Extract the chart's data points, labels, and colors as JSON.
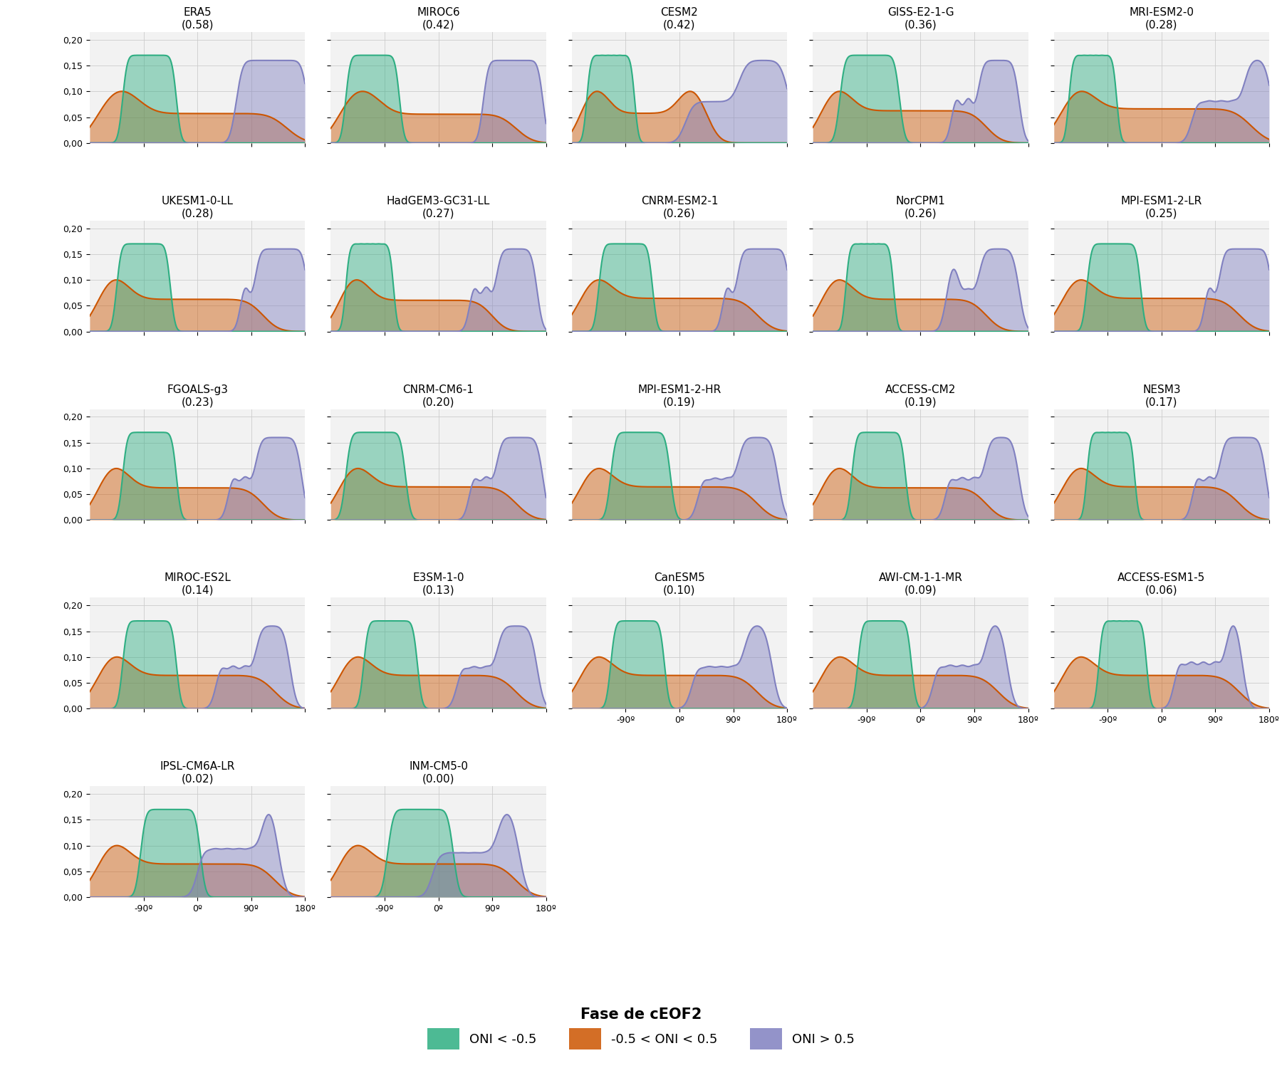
{
  "panels": [
    {
      "name": "ERA5",
      "score": 0.58,
      "la_nina": [
        -120,
        -110,
        -100,
        -90,
        -80,
        -70,
        -60,
        -50,
        -40
      ],
      "neutral": [
        -160,
        -150,
        -140,
        -130,
        -120,
        -110,
        -100,
        -80,
        -60,
        -40,
        -20,
        0,
        20,
        40,
        60,
        80,
        100,
        120,
        140
      ],
      "el_nino": [
        70,
        80,
        90,
        100,
        110,
        120,
        130,
        140,
        150,
        160,
        170,
        180
      ]
    },
    {
      "name": "MIROC6",
      "score": 0.42,
      "la_nina": [
        -150,
        -140,
        -130,
        -120,
        -110,
        -100,
        -90,
        -80,
        -70
      ],
      "neutral": [
        -160,
        -150,
        -140,
        -130,
        -120,
        -110,
        -100,
        -80,
        -60,
        -40,
        -20,
        0,
        20,
        40,
        60,
        80,
        100,
        120
      ],
      "el_nino": [
        80,
        90,
        100,
        110,
        120,
        130,
        140,
        150,
        160,
        170
      ]
    },
    {
      "name": "CESM2",
      "score": 0.42,
      "la_nina": [
        -150,
        -140,
        -130,
        -120,
        -110,
        -100,
        -90,
        -80
      ],
      "neutral": [
        -160,
        -150,
        -140,
        -130,
        -120,
        -100,
        -80,
        -60,
        -40,
        -20,
        0,
        10,
        20,
        30,
        40
      ],
      "el_nino": [
        20,
        40,
        60,
        80,
        100,
        110,
        120,
        130,
        140,
        150,
        160,
        170,
        180
      ]
    },
    {
      "name": "GISS-E2-1-G",
      "score": 0.36,
      "la_nina": [
        -130,
        -120,
        -110,
        -100,
        -90,
        -80,
        -70,
        -60,
        -50,
        -40
      ],
      "neutral": [
        -160,
        -150,
        -140,
        -130,
        -120,
        -100,
        -80,
        -60,
        -40,
        -20,
        0,
        20,
        40,
        60,
        80,
        100
      ],
      "el_nino": [
        60,
        80,
        100,
        110,
        120,
        130,
        140,
        150,
        160
      ]
    },
    {
      "name": "MRI-ESM2-0",
      "score": 0.28,
      "la_nina": [
        -150,
        -140,
        -130,
        -120,
        -110,
        -100,
        -90,
        -80
      ],
      "neutral": [
        -160,
        -150,
        -140,
        -130,
        -120,
        -100,
        -80,
        -60,
        -40,
        -20,
        0,
        20,
        40,
        60,
        80,
        100,
        120,
        140
      ],
      "el_nino": [
        60,
        80,
        100,
        120,
        140,
        150,
        160,
        170,
        180
      ]
    },
    {
      "name": "UKESM1-0-LL",
      "score": 0.28,
      "la_nina": [
        -130,
        -120,
        -110,
        -100,
        -90,
        -80,
        -70,
        -60,
        -50
      ],
      "neutral": [
        -160,
        -150,
        -140,
        -130,
        -120,
        -100,
        -80,
        -60,
        -40,
        -20,
        0,
        20,
        40,
        60,
        80,
        100
      ],
      "el_nino": [
        80,
        100,
        110,
        120,
        130,
        140,
        150,
        160,
        170,
        180
      ]
    },
    {
      "name": "HadGEM3-GC31-LL",
      "score": 0.27,
      "la_nina": [
        -150,
        -140,
        -130,
        -120,
        -110,
        -100,
        -90,
        -80
      ],
      "neutral": [
        -160,
        -150,
        -140,
        -130,
        -120,
        -100,
        -80,
        -60,
        -40,
        -20,
        0,
        20,
        40,
        60,
        80
      ],
      "el_nino": [
        60,
        80,
        100,
        110,
        120,
        130,
        140,
        150,
        160
      ]
    },
    {
      "name": "CNRM-ESM2-1",
      "score": 0.26,
      "la_nina": [
        -130,
        -120,
        -110,
        -100,
        -90,
        -80,
        -70,
        -60,
        -50
      ],
      "neutral": [
        -160,
        -150,
        -140,
        -130,
        -120,
        -100,
        -80,
        -60,
        -40,
        -20,
        0,
        20,
        40,
        60,
        80,
        100,
        120
      ],
      "el_nino": [
        80,
        100,
        110,
        120,
        130,
        140,
        150,
        160,
        170,
        180
      ]
    },
    {
      "name": "NorCPM1",
      "score": 0.26,
      "la_nina": [
        -120,
        -110,
        -100,
        -90,
        -80,
        -70,
        -60,
        -50
      ],
      "neutral": [
        -160,
        -150,
        -140,
        -130,
        -120,
        -100,
        -80,
        -60,
        -40,
        -20,
        0,
        20,
        40,
        60,
        80,
        100
      ],
      "el_nino": [
        50,
        60,
        80,
        100,
        110,
        120,
        130,
        140,
        150,
        160
      ]
    },
    {
      "name": "MPI-ESM1-2-LR",
      "score": 0.25,
      "la_nina": [
        -120,
        -110,
        -100,
        -90,
        -80,
        -70,
        -60,
        -50,
        -40
      ],
      "neutral": [
        -160,
        -150,
        -140,
        -130,
        -120,
        -100,
        -80,
        -60,
        -40,
        -20,
        0,
        20,
        40,
        60,
        80,
        100,
        120
      ],
      "el_nino": [
        80,
        100,
        110,
        120,
        130,
        140,
        150,
        160,
        170,
        180
      ]
    },
    {
      "name": "FGOALS-g3",
      "score": 0.23,
      "la_nina": [
        -120,
        -110,
        -100,
        -90,
        -80,
        -70,
        -60,
        -50,
        -40
      ],
      "neutral": [
        -160,
        -150,
        -140,
        -130,
        -120,
        -100,
        -80,
        -60,
        -40,
        -20,
        0,
        20,
        40,
        60,
        80,
        100
      ],
      "el_nino": [
        60,
        80,
        100,
        110,
        120,
        130,
        140,
        150,
        160,
        170
      ]
    },
    {
      "name": "CNRM-CM6-1",
      "score": 0.2,
      "la_nina": [
        -150,
        -140,
        -130,
        -120,
        -110,
        -100,
        -90,
        -80,
        -70,
        -60
      ],
      "neutral": [
        -160,
        -150,
        -140,
        -130,
        -120,
        -100,
        -80,
        -60,
        -40,
        -20,
        0,
        20,
        40,
        60,
        80,
        100,
        120
      ],
      "el_nino": [
        60,
        80,
        100,
        110,
        120,
        130,
        140,
        150,
        160,
        170
      ]
    },
    {
      "name": "MPI-ESM1-2-HR",
      "score": 0.19,
      "la_nina": [
        -110,
        -100,
        -90,
        -80,
        -70,
        -60,
        -50,
        -40,
        -30,
        -20
      ],
      "neutral": [
        -160,
        -150,
        -140,
        -130,
        -120,
        -100,
        -80,
        -60,
        -40,
        -20,
        0,
        20,
        40,
        60,
        80,
        100,
        120
      ],
      "el_nino": [
        40,
        60,
        80,
        100,
        110,
        120,
        130,
        140,
        150,
        160
      ]
    },
    {
      "name": "ACCESS-CM2",
      "score": 0.19,
      "la_nina": [
        -110,
        -100,
        -90,
        -80,
        -70,
        -60,
        -50,
        -40,
        -30
      ],
      "neutral": [
        -160,
        -150,
        -140,
        -130,
        -120,
        -100,
        -80,
        -60,
        -40,
        -20,
        0,
        20,
        40,
        60,
        80,
        100
      ],
      "el_nino": [
        50,
        70,
        90,
        110,
        120,
        130,
        140,
        150,
        160
      ]
    },
    {
      "name": "NESM3",
      "score": 0.17,
      "la_nina": [
        -120,
        -110,
        -100,
        -90,
        -80,
        -70,
        -60,
        -50
      ],
      "neutral": [
        -160,
        -150,
        -140,
        -130,
        -120,
        -100,
        -80,
        -60,
        -40,
        -20,
        0,
        20,
        40,
        60,
        80,
        100,
        120
      ],
      "el_nino": [
        60,
        80,
        100,
        110,
        120,
        130,
        140,
        150,
        160,
        170
      ]
    },
    {
      "name": "MIROC-ES2L",
      "score": 0.14,
      "la_nina": [
        -120,
        -110,
        -100,
        -90,
        -80,
        -70,
        -60,
        -50,
        -40
      ],
      "neutral": [
        -160,
        -150,
        -140,
        -130,
        -120,
        -100,
        -80,
        -60,
        -40,
        -20,
        0,
        20,
        40,
        60,
        80,
        100,
        120
      ],
      "el_nino": [
        40,
        60,
        80,
        100,
        110,
        120,
        130,
        140,
        150
      ]
    },
    {
      "name": "E3SM-1-0",
      "score": 0.13,
      "la_nina": [
        -120,
        -110,
        -100,
        -90,
        -80,
        -70,
        -60,
        -50,
        -40
      ],
      "neutral": [
        -160,
        -150,
        -140,
        -130,
        -120,
        -100,
        -80,
        -60,
        -40,
        -20,
        0,
        20,
        40,
        60,
        80,
        100,
        120
      ],
      "el_nino": [
        40,
        60,
        80,
        100,
        110,
        120,
        130,
        140,
        150,
        160
      ]
    },
    {
      "name": "CanESM5",
      "score": 0.1,
      "la_nina": [
        -110,
        -100,
        -90,
        -80,
        -70,
        -60,
        -50,
        -40,
        -30
      ],
      "neutral": [
        -160,
        -150,
        -140,
        -130,
        -120,
        -100,
        -80,
        -60,
        -40,
        -20,
        0,
        20,
        40,
        60,
        80,
        100,
        120
      ],
      "el_nino": [
        30,
        50,
        70,
        90,
        110,
        120,
        130,
        140,
        150
      ]
    },
    {
      "name": "AWI-CM-1-1-MR",
      "score": 0.09,
      "la_nina": [
        -100,
        -90,
        -80,
        -70,
        -60,
        -50,
        -40,
        -30,
        -20
      ],
      "neutral": [
        -160,
        -150,
        -140,
        -130,
        -120,
        -100,
        -80,
        -60,
        -40,
        -20,
        0,
        20,
        40,
        60,
        80,
        100,
        120
      ],
      "el_nino": [
        30,
        50,
        70,
        90,
        110,
        120,
        130,
        140
      ]
    },
    {
      "name": "ACCESS-ESM1-5",
      "score": 0.06,
      "la_nina": [
        -100,
        -90,
        -80,
        -70,
        -60,
        -50,
        -40,
        -30
      ],
      "neutral": [
        -160,
        -150,
        -140,
        -130,
        -120,
        -100,
        -80,
        -60,
        -40,
        -20,
        0,
        20,
        40,
        60,
        80,
        100,
        120
      ],
      "el_nino": [
        30,
        50,
        70,
        90,
        110,
        120,
        130
      ]
    },
    {
      "name": "IPSL-CM6A-LR",
      "score": 0.02,
      "la_nina": [
        -90,
        -80,
        -70,
        -60,
        -50,
        -40,
        -30,
        -20,
        -10,
        0
      ],
      "neutral": [
        -160,
        -150,
        -140,
        -130,
        -120,
        -100,
        -80,
        -60,
        -40,
        -20,
        0,
        20,
        40,
        60,
        80,
        100,
        120
      ],
      "el_nino": [
        10,
        30,
        50,
        70,
        90,
        110,
        120,
        130
      ]
    },
    {
      "name": "INM-CM5-0",
      "score": 0.0,
      "la_nina": [
        -80,
        -70,
        -60,
        -50,
        -40,
        -30,
        -20,
        -10,
        0,
        10,
        20
      ],
      "neutral": [
        -160,
        -150,
        -140,
        -130,
        -120,
        -100,
        -80,
        -60,
        -40,
        -20,
        0,
        20,
        40,
        60,
        80,
        100,
        120
      ],
      "el_nino": [
        0,
        20,
        40,
        60,
        80,
        100,
        110,
        120,
        130
      ]
    }
  ],
  "color_la_nina": "#2EAE82",
  "color_neutral": "#CC5500",
  "color_el_nino": "#8080C0",
  "color_fill_la_nina": "#2EAE82",
  "color_fill_neutral": "#CC5500",
  "color_fill_el_nino": "#8080C0",
  "xlim": [
    -180,
    180
  ],
  "ylim": [
    0,
    0.215
  ],
  "yticks": [
    0.0,
    0.05,
    0.1,
    0.15,
    0.2
  ],
  "ytick_labels": [
    "0,00",
    "0,05",
    "0,10",
    "0,15",
    "0,20"
  ],
  "xticks": [
    -90,
    0,
    90,
    180
  ],
  "xlabel_labels": [
    "-90º",
    "0º",
    "90º",
    "180º"
  ],
  "row_configs": [
    5,
    5,
    5,
    5,
    2
  ],
  "legend_title": "Fase de cEOF2",
  "legend_entries": [
    "ONI < -0.5",
    "-0.5 < ONI < 0.5",
    "ONI > 0.5"
  ],
  "background_color": "#FFFFFF",
  "panel_bg": "#F2F2F2",
  "grid_color": "#CCCCCC",
  "title_fontsize": 11,
  "tick_fontsize": 9,
  "kde_bw": 0.25,
  "ln_peak": 0.17,
  "ne_peak": 0.1,
  "en_peak": 0.16
}
